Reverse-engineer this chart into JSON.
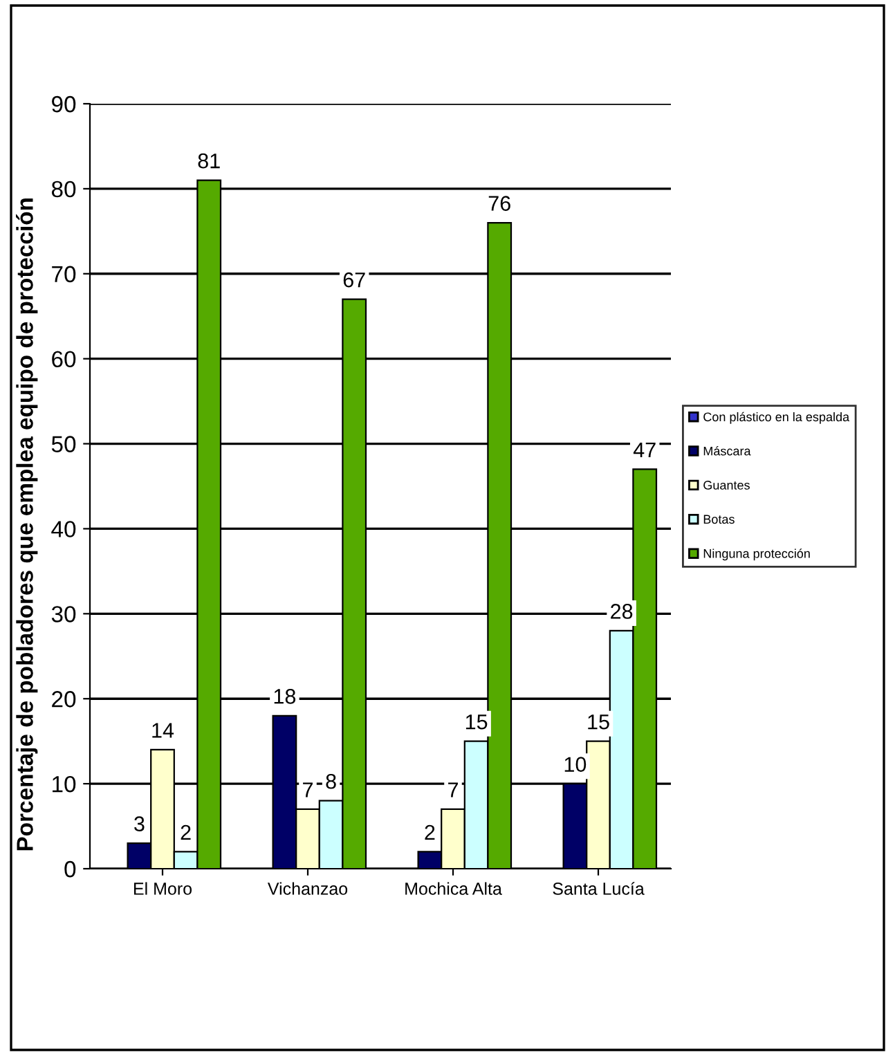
{
  "chart_data": {
    "type": "bar",
    "ylabel": "Porcentaje de pobladores que emplea equipo de protección",
    "categories": [
      "El Moro",
      "Vichanzao",
      "Mochica Alta",
      "Santa Lucía"
    ],
    "series": [
      {
        "name": "Con plástico en la espalda",
        "color": "#3333cc",
        "values": [
          null,
          null,
          null,
          null
        ]
      },
      {
        "name": "Máscara",
        "color": "#000066",
        "values": [
          3,
          18,
          2,
          10
        ]
      },
      {
        "name": "Guantes",
        "color": "#ffffcc",
        "values": [
          14,
          7,
          7,
          15
        ]
      },
      {
        "name": "Botas",
        "color": "#ccffff",
        "values": [
          2,
          8,
          15,
          28
        ]
      },
      {
        "name": "Ninguna protección",
        "color": "#55aa00",
        "values": [
          81,
          67,
          76,
          47
        ]
      }
    ],
    "ylim": [
      0,
      90
    ],
    "yticks": [
      0,
      10,
      20,
      30,
      40,
      50,
      60,
      70,
      80,
      90
    ],
    "grid": "y",
    "legend": "right",
    "data_labels": true
  }
}
